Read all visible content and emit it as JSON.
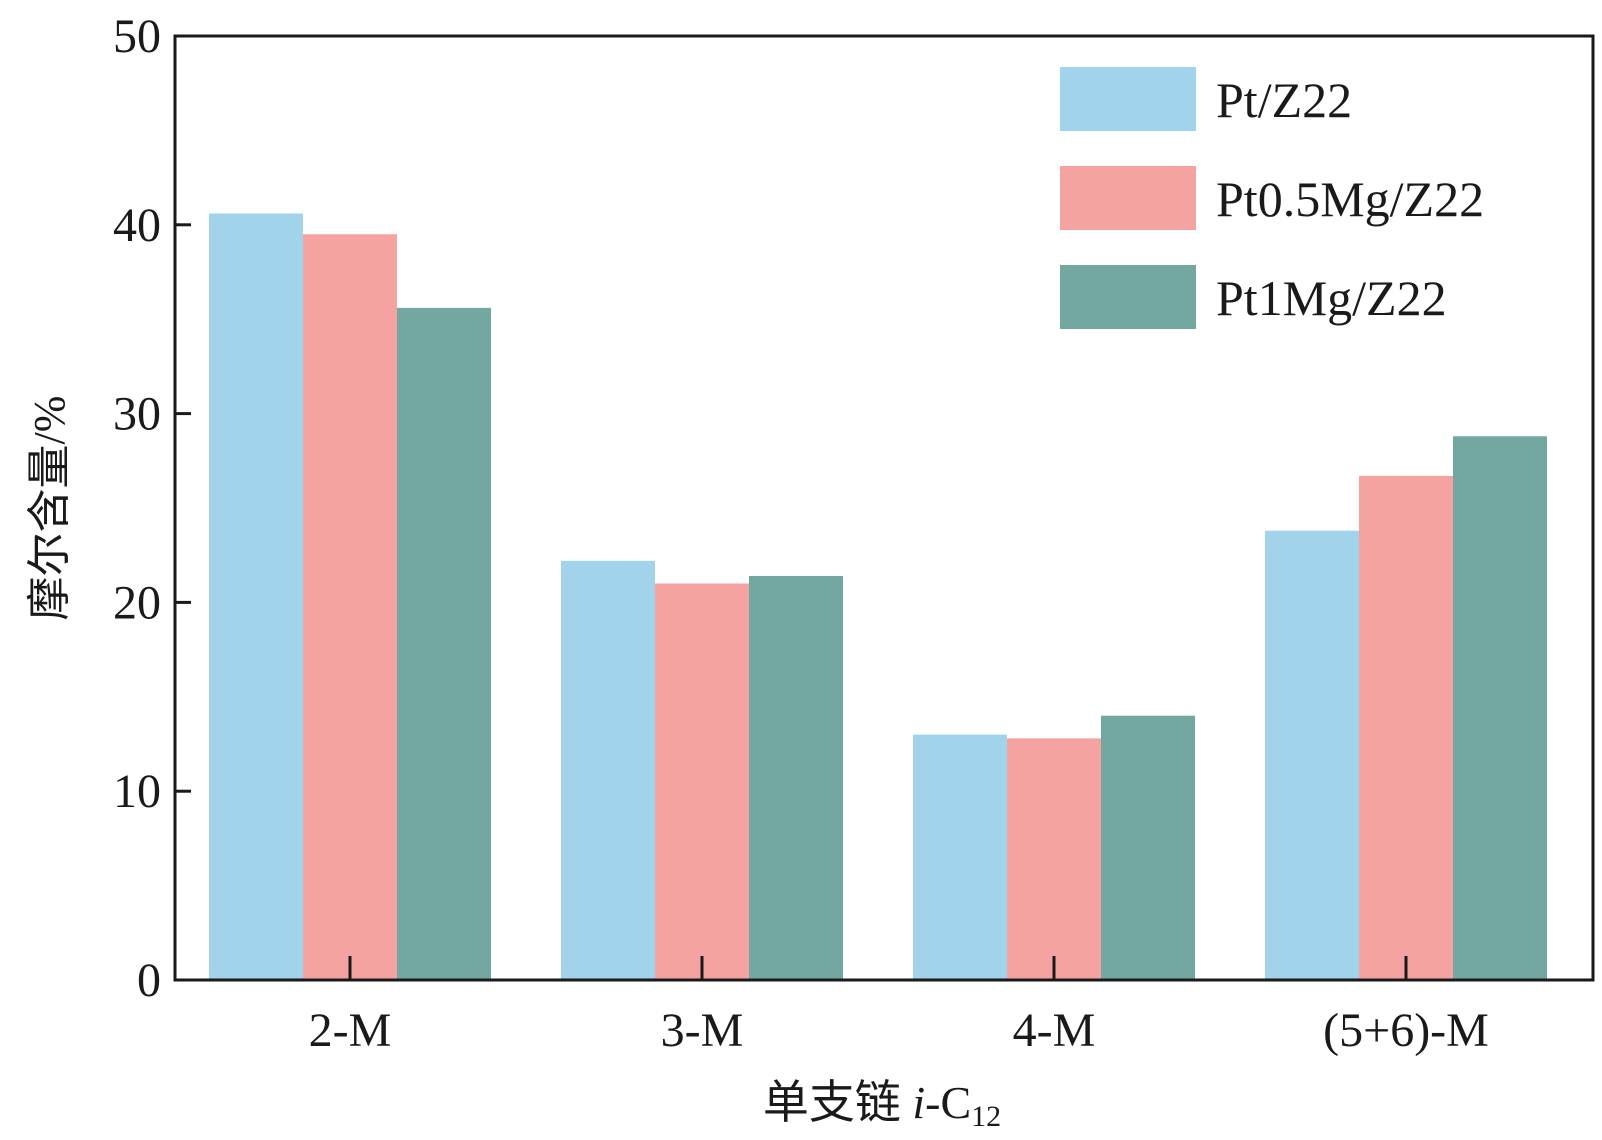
{
  "chart_data": {
    "type": "bar",
    "categories": [
      "2-M",
      "3-M",
      "4-M",
      "(5+6)-M"
    ],
    "series": [
      {
        "name": "Pt/Z22",
        "color": "#a1d3ea",
        "values": [
          40.6,
          22.2,
          13.0,
          23.8
        ]
      },
      {
        "name": "Pt0.5Mg/Z22",
        "color": "#f5a3a1",
        "values": [
          39.5,
          21.0,
          12.8,
          26.7
        ]
      },
      {
        "name": "Pt1Mg/Z22",
        "color": "#73a8a0",
        "values": [
          35.6,
          21.4,
          14.0,
          28.8
        ]
      }
    ],
    "ylabel": "摩尔含量/%",
    "xlabel": {
      "main": "单支链 ",
      "italic": "i",
      "suffix": "-C",
      "subscript": "12"
    },
    "ylim": [
      0,
      50
    ],
    "yticks": [
      "0",
      "10",
      "20",
      "30",
      "40",
      "50"
    ],
    "grid": false,
    "legend_position": "top-right"
  }
}
